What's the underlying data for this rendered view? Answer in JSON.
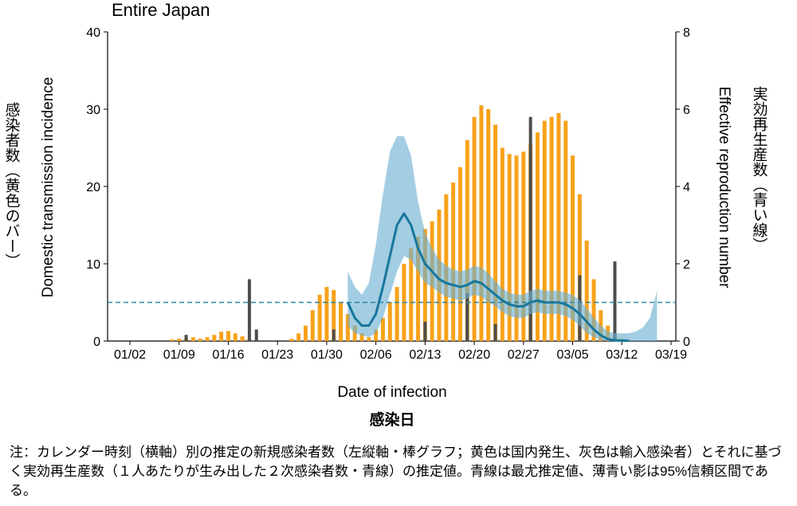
{
  "chart_data": {
    "type": "bar_line_band",
    "title": "Entire Japan",
    "ylabel": "Domestic transmission incidence",
    "ylabel_ja": "感染者数（黄色のバー）",
    "y2label": "Effective reproduction number",
    "y2label_ja": "実効再生産数（青い線）",
    "xlabel": "Date of infection",
    "xlabel_ja": "感染日",
    "note": "注：カレンダー時刻（横軸）別の推定の新規感染者数（左縦軸・棒グラフ；黄色は国内発生、灰色は輸入感染者）とそれに基づく実効再生産数（１人あたりが生み出した２次感染者数・青線）の推定値。青線は最尤推定値、薄青い影は95%信頼区間である。",
    "categories": [
      "01/02",
      null,
      null,
      null,
      null,
      null,
      null,
      "01/09",
      null,
      null,
      null,
      null,
      null,
      null,
      "01/16",
      null,
      null,
      null,
      null,
      null,
      null,
      "01/23",
      null,
      null,
      null,
      null,
      null,
      null,
      "01/30",
      null,
      null,
      null,
      null,
      null,
      null,
      "02/06",
      null,
      null,
      null,
      null,
      null,
      null,
      "02/13",
      null,
      null,
      null,
      null,
      null,
      null,
      "02/20",
      null,
      null,
      null,
      null,
      null,
      null,
      "02/27",
      null,
      null,
      null,
      null,
      null,
      null,
      "03/05",
      null,
      null,
      null,
      null,
      null,
      null,
      "03/12",
      null,
      null,
      null,
      null,
      null,
      null,
      "03/19"
    ],
    "ylim": [
      0,
      40
    ],
    "yticks": [
      0,
      10,
      20,
      30,
      40
    ],
    "y2lim": [
      0,
      8
    ],
    "y2ticks": [
      0,
      2,
      4,
      6,
      8
    ],
    "reference_line": {
      "value": 1,
      "axis": "y2",
      "color": "#2a86a6"
    },
    "series": [
      {
        "type": "bar",
        "color": "#f7a21b",
        "values": [
          0,
          0,
          0,
          0,
          0,
          0,
          0.2,
          0.3,
          0.3,
          0.5,
          0.3,
          0.5,
          0.8,
          1.2,
          1.3,
          1.0,
          0.6,
          0.3,
          0,
          0,
          0,
          0,
          0,
          0.3,
          1.0,
          2.0,
          4.0,
          6.0,
          7.0,
          6.6,
          5.0,
          3.5,
          2.0,
          1.0,
          0.5,
          1.5,
          3,
          5,
          7,
          10,
          12,
          13.5,
          14.5,
          15.5,
          17,
          19,
          20.5,
          22.5,
          26,
          29,
          30.5,
          30,
          28,
          25,
          24.2,
          24,
          24.5,
          25.5,
          27,
          28.5,
          29,
          29.5,
          28.5,
          24,
          19,
          13,
          8,
          4,
          2,
          1,
          0.3,
          0,
          0,
          0,
          0,
          0,
          0,
          0
        ]
      },
      {
        "type": "bar",
        "color": "#4d4d4d",
        "values": [
          0,
          0,
          0,
          0,
          0,
          0,
          0,
          0,
          0.8,
          0,
          0,
          0,
          0,
          0,
          0,
          0,
          0,
          8,
          1.5,
          0,
          0,
          0,
          0,
          0,
          0,
          0,
          0,
          0,
          0,
          1.5,
          0,
          0,
          0,
          0,
          0,
          0,
          0,
          0,
          0,
          0,
          0,
          0,
          2.5,
          0,
          0,
          0,
          0,
          0,
          6.2,
          0,
          0,
          0,
          2.2,
          0,
          0,
          0,
          0,
          29,
          0,
          0,
          0,
          0,
          0,
          0,
          8.5,
          0,
          0,
          0,
          0,
          10.3,
          0,
          0,
          0,
          0,
          0,
          0,
          0,
          0
        ]
      },
      {
        "type": "band",
        "axis": "y2",
        "color": "#6aaed0",
        "upper": [
          null,
          null,
          null,
          null,
          null,
          null,
          null,
          null,
          null,
          null,
          null,
          null,
          null,
          null,
          null,
          null,
          null,
          null,
          null,
          null,
          null,
          null,
          null,
          null,
          null,
          null,
          null,
          null,
          null,
          null,
          null,
          1.8,
          1.4,
          1.2,
          1.5,
          2.5,
          3.8,
          4.9,
          5.3,
          5.3,
          4.8,
          3.6,
          2.8,
          2.4,
          2.1,
          1.95,
          1.85,
          1.8,
          1.85,
          1.95,
          1.9,
          1.75,
          1.55,
          1.35,
          1.25,
          1.2,
          1.2,
          1.3,
          1.35,
          1.3,
          1.3,
          1.3,
          1.25,
          1.2,
          1.05,
          0.85,
          0.6,
          0.4,
          0.25,
          0.2,
          0.2,
          0.2,
          0.25,
          0.35,
          0.6,
          1.3,
          null,
          null
        ],
        "lower": [
          null,
          null,
          null,
          null,
          null,
          null,
          null,
          null,
          null,
          null,
          null,
          null,
          null,
          null,
          null,
          null,
          null,
          null,
          null,
          null,
          null,
          null,
          null,
          null,
          null,
          null,
          null,
          null,
          null,
          null,
          null,
          0.4,
          0.2,
          0.15,
          0.1,
          0.2,
          0.6,
          1.2,
          1.8,
          2.2,
          2.1,
          1.8,
          1.5,
          1.4,
          1.25,
          1.15,
          1.1,
          1.05,
          1.1,
          1.2,
          1.15,
          1.0,
          0.9,
          0.75,
          0.65,
          0.6,
          0.6,
          0.7,
          0.75,
          0.7,
          0.7,
          0.7,
          0.65,
          0.55,
          0.4,
          0.2,
          0.1,
          0.02,
          0,
          0,
          0,
          0,
          0,
          0,
          0,
          0,
          null,
          null
        ]
      },
      {
        "type": "line",
        "axis": "y2",
        "color": "#17779d",
        "values": [
          null,
          null,
          null,
          null,
          null,
          null,
          null,
          null,
          null,
          null,
          null,
          null,
          null,
          null,
          null,
          null,
          null,
          null,
          null,
          null,
          null,
          null,
          null,
          null,
          null,
          null,
          null,
          null,
          null,
          null,
          null,
          1.0,
          0.6,
          0.4,
          0.4,
          0.7,
          1.4,
          2.2,
          3.0,
          3.3,
          3.0,
          2.4,
          2.0,
          1.8,
          1.6,
          1.5,
          1.45,
          1.4,
          1.45,
          1.55,
          1.5,
          1.35,
          1.2,
          1.05,
          0.95,
          0.9,
          0.9,
          1.0,
          1.05,
          1.0,
          1.0,
          1.0,
          0.95,
          0.85,
          0.7,
          0.5,
          0.3,
          0.15,
          0.05,
          0.02,
          0.01,
          0.01,
          null,
          null,
          null,
          null,
          null,
          null
        ]
      }
    ]
  }
}
